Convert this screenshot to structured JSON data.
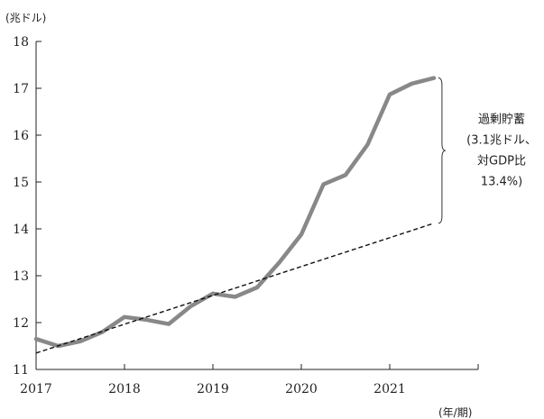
{
  "chart_data": {
    "type": "line",
    "y_unit_label": "(兆ドル)",
    "x_unit_label": "(年/期)",
    "xlim": [
      2017,
      2022
    ],
    "ylim": [
      11,
      18
    ],
    "x_tick_labels": [
      "2017",
      "2018",
      "2019",
      "2020",
      "2021"
    ],
    "x_tick_values": [
      2017,
      2018,
      2019,
      2020,
      2021
    ],
    "y_tick_values": [
      11,
      12,
      13,
      14,
      15,
      16,
      17,
      18
    ],
    "series": [
      {
        "style": "solid",
        "color": "#888888",
        "points": [
          [
            2017.0,
            11.65
          ],
          [
            2017.25,
            11.5
          ],
          [
            2017.5,
            11.6
          ],
          [
            2017.75,
            11.8
          ],
          [
            2018.0,
            12.12
          ],
          [
            2018.25,
            12.06
          ],
          [
            2018.5,
            11.97
          ],
          [
            2018.75,
            12.35
          ],
          [
            2019.0,
            12.62
          ],
          [
            2019.25,
            12.55
          ],
          [
            2019.5,
            12.75
          ],
          [
            2019.75,
            13.28
          ],
          [
            2020.0,
            13.88
          ],
          [
            2020.25,
            14.95
          ],
          [
            2020.5,
            15.15
          ],
          [
            2020.75,
            15.8
          ],
          [
            2021.0,
            16.87
          ],
          [
            2021.25,
            17.1
          ],
          [
            2021.5,
            17.22
          ]
        ]
      },
      {
        "style": "dashed",
        "color": "#111111",
        "points": [
          [
            2017.0,
            11.35
          ],
          [
            2021.5,
            14.12
          ]
        ]
      }
    ],
    "annotation": {
      "lines": [
        "過剰貯蓄",
        "(3.1兆ドル、",
        "対GDP比",
        "13.4%)"
      ],
      "x": 2021.55,
      "y_range": [
        14.12,
        17.22
      ]
    }
  }
}
